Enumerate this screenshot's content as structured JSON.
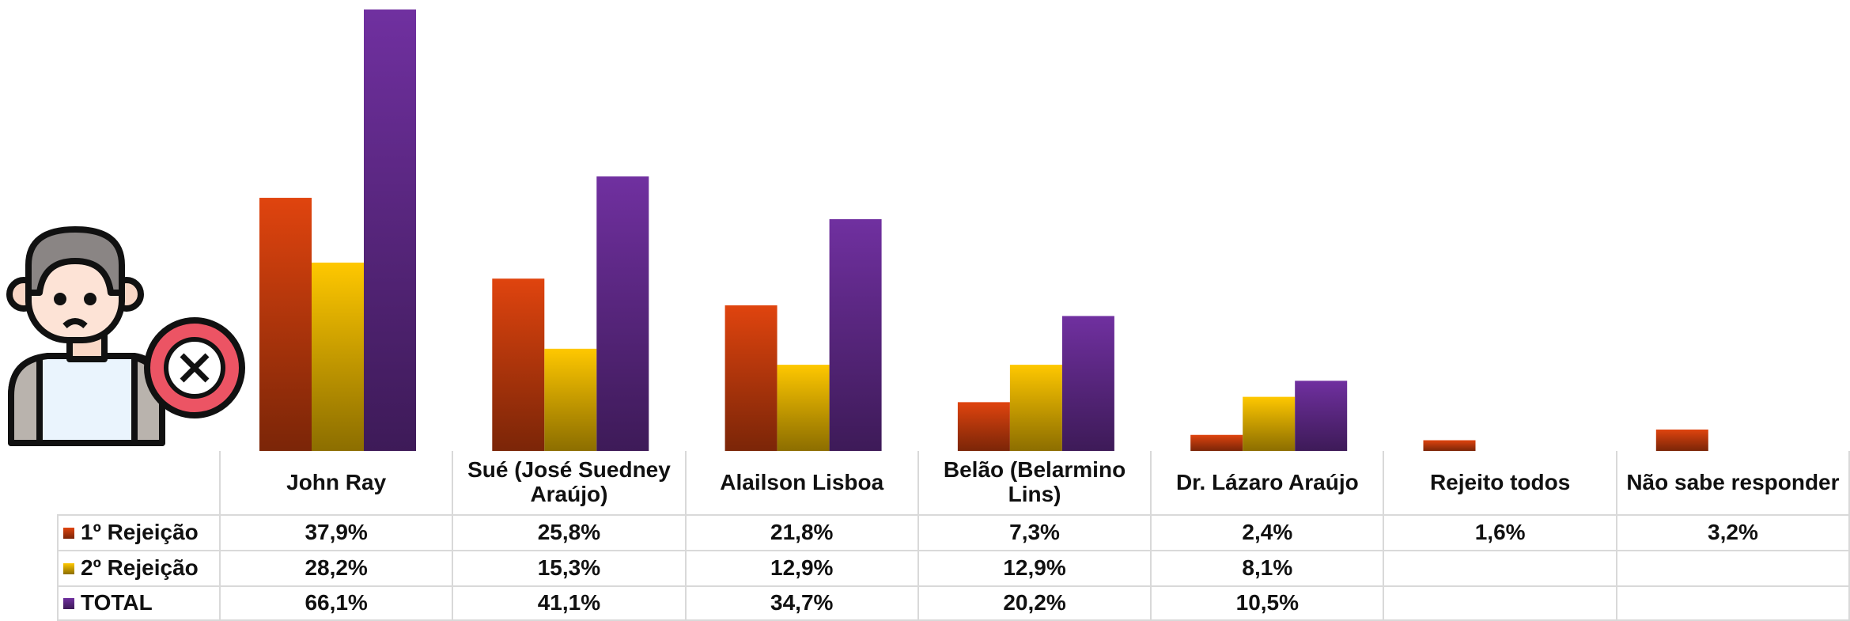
{
  "chart_data": {
    "type": "bar",
    "categories": [
      "John Ray",
      "Sué (José Suedney Araújo)",
      "Alailson Lisboa",
      "Belão (Belarmino Lins)",
      "Dr. Lázaro Araújo",
      "Rejeito todos",
      "Não sabe responder"
    ],
    "series": [
      {
        "name": "1º Rejeição",
        "color": "#e0440e",
        "values": [
          37.9,
          25.8,
          21.8,
          7.3,
          2.4,
          1.6,
          3.2
        ],
        "value_labels": [
          "37,9%",
          "25,8%",
          "21,8%",
          "7,3%",
          "2,4%",
          "1,6%",
          "3,2%"
        ]
      },
      {
        "name": "2º Rejeição",
        "color": "#ffc800",
        "values": [
          28.2,
          15.3,
          12.9,
          12.9,
          8.1,
          null,
          null
        ],
        "value_labels": [
          "28,2%",
          "15,3%",
          "12,9%",
          "12,9%",
          "8,1%",
          null,
          null
        ]
      },
      {
        "name": "TOTAL",
        "color": "#7030a0",
        "values": [
          66.1,
          41.1,
          34.7,
          20.2,
          10.5,
          null,
          null
        ],
        "value_labels": [
          "66,1%",
          "41,1%",
          "34,7%",
          "20,2%",
          "10,5%",
          null,
          null
        ]
      }
    ]
  }
}
